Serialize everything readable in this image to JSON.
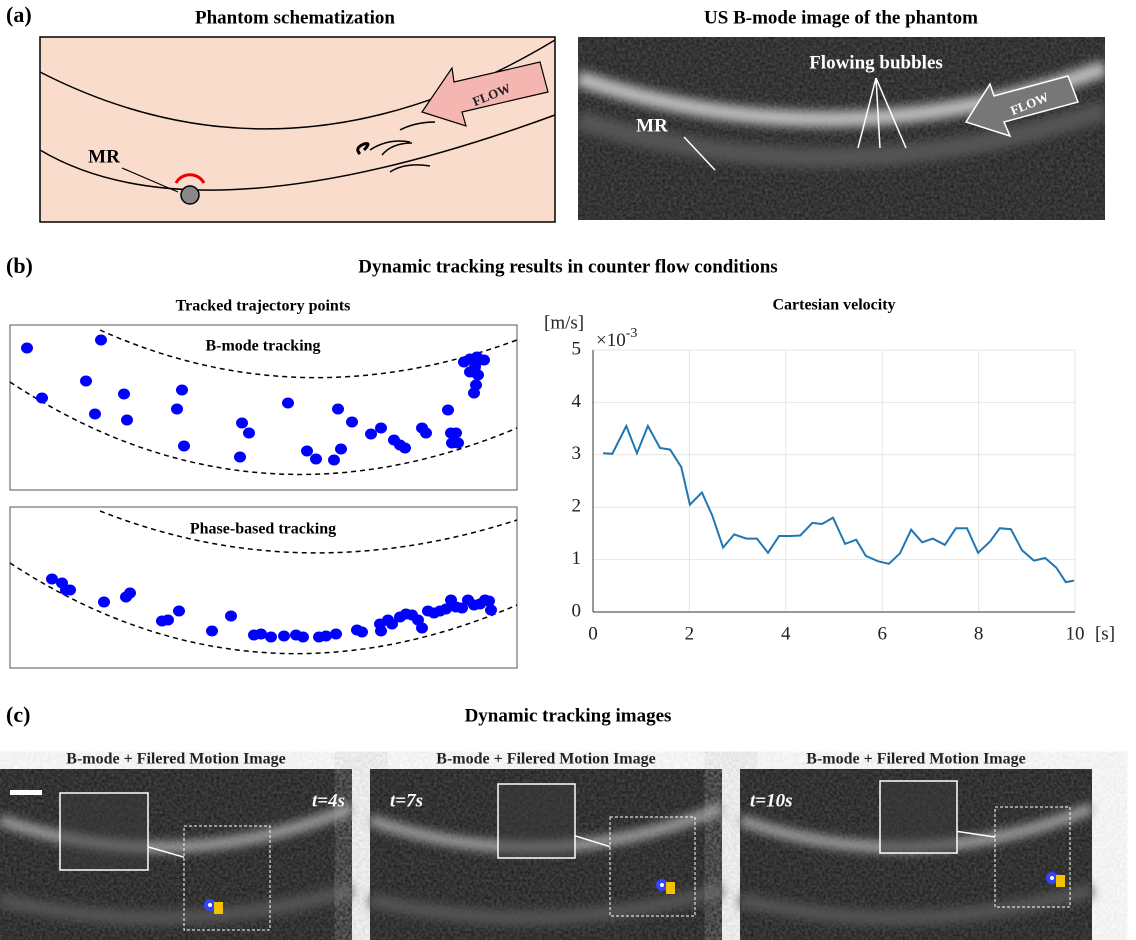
{
  "panels": {
    "a": {
      "label": "(a)",
      "left_title": "Phantom schematization",
      "right_title": "US B-mode image of the phantom",
      "schematic": {
        "mr": "MR",
        "flow": "FLOW"
      },
      "bmode": {
        "mr": "MR",
        "bubbles": "Flowing bubbles",
        "flow": "FLOW"
      }
    },
    "b": {
      "label": "(b)",
      "title": "Dynamic tracking results in counter flow conditions",
      "left_title": "Tracked trajectory points"
    },
    "c": {
      "label": "(c)",
      "title": "Dynamic tracking images",
      "frames": [
        {
          "title": "B-mode + Filered Motion Image",
          "time": "t=4s"
        },
        {
          "title": "B-mode + Filered Motion Image",
          "time": "t=7s"
        },
        {
          "title": "B-mode + Filered Motion Image",
          "time": "t=10s"
        }
      ]
    }
  },
  "chart_data": [
    {
      "type": "scatter",
      "title": "B-mode tracking",
      "color": "#0000ff",
      "xlim": [
        0,
        507
      ],
      "ylim": [
        0,
        165
      ],
      "x": [
        17,
        32,
        91,
        76,
        85,
        114,
        117,
        172,
        167,
        174,
        232,
        239,
        230,
        278,
        297,
        306,
        324,
        331,
        328,
        342,
        361,
        371,
        384,
        390,
        395,
        412,
        416,
        438,
        441,
        442,
        446,
        448,
        454,
        460,
        465,
        468,
        466,
        464,
        470,
        474,
        460,
        467
      ],
      "y": [
        142,
        92,
        150,
        109,
        76,
        96,
        70,
        100,
        81,
        44,
        67,
        57,
        33,
        87,
        39,
        31,
        30,
        41,
        81,
        68,
        56,
        62,
        50,
        45,
        42,
        62,
        57,
        80,
        57,
        47,
        57,
        47,
        128,
        131,
        123,
        115,
        105,
        97,
        130,
        130,
        118,
        133
      ]
    },
    {
      "type": "scatter",
      "title": "Phase-based tracking",
      "color": "#0000ff",
      "xlim": [
        0,
        507
      ],
      "ylim": [
        0,
        161
      ],
      "x": [
        42,
        52,
        56,
        60,
        94,
        116,
        120,
        152,
        158,
        169,
        202,
        221,
        244,
        251,
        261,
        274,
        286,
        293,
        309,
        316,
        326,
        347,
        352,
        370,
        371,
        378,
        382,
        390,
        396,
        402,
        408,
        412,
        418,
        424,
        430,
        436,
        441,
        446,
        452,
        458,
        464,
        470,
        475,
        479,
        481
      ],
      "y": [
        89,
        85,
        78,
        78,
        66,
        71,
        75,
        47,
        48,
        57,
        37,
        52,
        33,
        34,
        31,
        32,
        33,
        31,
        31,
        32,
        34,
        38,
        36,
        44,
        37,
        48,
        44,
        51,
        54,
        53,
        48,
        40,
        57,
        55,
        57,
        59,
        68,
        61,
        60,
        68,
        63,
        64,
        68,
        67,
        58
      ]
    },
    {
      "type": "line",
      "title": "Cartesian velocity",
      "y_label": "[m/s]",
      "multiplier": "×10",
      "exponent": "-3",
      "x_label": "[s]",
      "color": "#1f77b4",
      "grid": true,
      "xlim": [
        0,
        10
      ],
      "ylim": [
        0,
        5
      ],
      "xticks": [
        0,
        2,
        4,
        6,
        8,
        10
      ],
      "yticks": [
        0,
        1,
        2,
        3,
        4,
        5
      ],
      "x": [
        0.21,
        0.4,
        0.69,
        0.91,
        1.14,
        1.39,
        1.6,
        1.83,
        2.01,
        2.26,
        2.47,
        2.7,
        2.93,
        3.18,
        3.4,
        3.63,
        3.86,
        4.09,
        4.3,
        4.55,
        4.75,
        4.98,
        5.23,
        5.46,
        5.66,
        5.91,
        6.14,
        6.37,
        6.6,
        6.83,
        7.05,
        7.3,
        7.53,
        7.76,
        7.99,
        8.24,
        8.44,
        8.67,
        8.9,
        9.15,
        9.38,
        9.61,
        9.81,
        9.98
      ],
      "values": [
        3.03,
        3.02,
        3.55,
        3.03,
        3.55,
        3.13,
        3.1,
        2.77,
        2.05,
        2.28,
        1.85,
        1.23,
        1.48,
        1.4,
        1.4,
        1.13,
        1.45,
        1.45,
        1.46,
        1.7,
        1.68,
        1.8,
        1.3,
        1.38,
        1.07,
        0.97,
        0.92,
        1.12,
        1.57,
        1.33,
        1.4,
        1.28,
        1.6,
        1.6,
        1.13,
        1.35,
        1.6,
        1.58,
        1.18,
        0.98,
        1.03,
        0.85,
        0.57,
        0.6
      ]
    }
  ]
}
